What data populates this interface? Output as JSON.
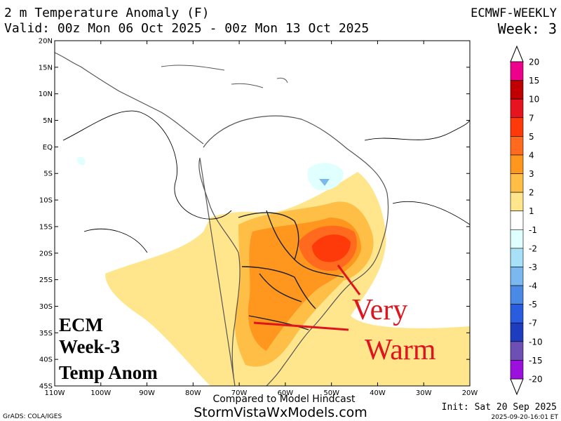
{
  "header": {
    "title": "2 m Temperature Anomaly (F)",
    "valid": "Valid: 00z Mon 06 Oct 2025 - 00z Mon 13 Oct 2025",
    "model": "ECMWF-WEEKLY",
    "week": "Week: 3"
  },
  "map": {
    "lonlim": [
      -110,
      -20
    ],
    "latlim": [
      -45,
      20
    ],
    "lonticks": [
      {
        "value": -110,
        "label": "110W"
      },
      {
        "value": -100,
        "label": "100W"
      },
      {
        "value": -90,
        "label": "90W"
      },
      {
        "value": -80,
        "label": "80W"
      },
      {
        "value": -70,
        "label": "70W"
      },
      {
        "value": -60,
        "label": "60W"
      },
      {
        "value": -50,
        "label": "50W"
      },
      {
        "value": -40,
        "label": "40W"
      },
      {
        "value": -30,
        "label": "30W"
      },
      {
        "value": -20,
        "label": "20W"
      }
    ],
    "latticks": [
      {
        "value": 20,
        "label": "20N"
      },
      {
        "value": 15,
        "label": "15N"
      },
      {
        "value": 10,
        "label": "10N"
      },
      {
        "value": 5,
        "label": "5N"
      },
      {
        "value": 0,
        "label": "EQ"
      },
      {
        "value": -5,
        "label": "5S"
      },
      {
        "value": -10,
        "label": "10S"
      },
      {
        "value": -15,
        "label": "15S"
      },
      {
        "value": -20,
        "label": "20S"
      },
      {
        "value": -25,
        "label": "25S"
      },
      {
        "value": -30,
        "label": "30S"
      },
      {
        "value": -35,
        "label": "35S"
      },
      {
        "value": -40,
        "label": "40S"
      },
      {
        "value": -45,
        "label": "45S"
      }
    ]
  },
  "legend": {
    "levels": [
      20,
      15,
      10,
      7,
      5,
      4,
      3,
      2,
      1,
      -1,
      -2,
      -3,
      -4,
      -5,
      -7,
      -10,
      -15,
      -20
    ],
    "colors": [
      "#ec008c",
      "#c00000",
      "#e6141e",
      "#ff3a0a",
      "#ff6a1e",
      "#ff961e",
      "#ffbe46",
      "#ffe68c",
      "#ffffff",
      "#e0ffff",
      "#a8e0f8",
      "#7ab8ef",
      "#4a8ae6",
      "#2a5ce0",
      "#1e3cbe",
      "#6e50b4",
      "#9b10dc"
    ]
  },
  "annotations": {
    "label_lines": [
      "ECM",
      "Week-3",
      "Temp Anom"
    ],
    "callout_lines": [
      "Very",
      "Warm"
    ],
    "compared": "Compared to Model Hindcast",
    "site": "StormVistaWxModels.com",
    "init": "Init: Sat 20 Sep 2025",
    "grads": "GrADS: COLA/IGES",
    "stamp": "2025-09-20-16:01 ET"
  }
}
